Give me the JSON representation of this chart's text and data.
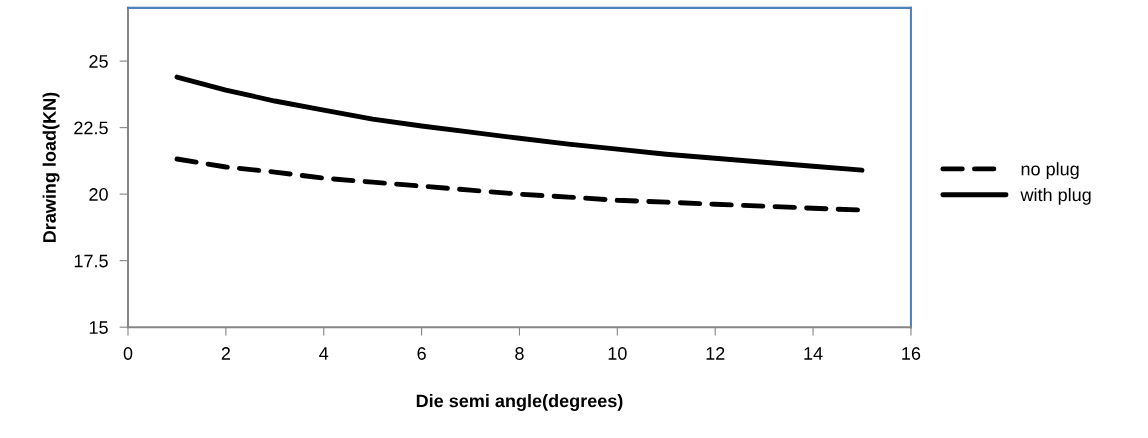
{
  "chart_data": {
    "type": "line",
    "xlabel": "Die semi angle(degrees)",
    "ylabel": "Drawing load(KN)",
    "x": [
      1,
      2,
      3,
      4,
      5,
      6,
      7,
      8,
      9,
      10,
      11,
      12,
      13,
      14,
      15
    ],
    "series": [
      {
        "name": "no plug",
        "color": "#000000",
        "line_style": "dashed",
        "values": [
          21.32,
          21.02,
          20.83,
          20.6,
          20.45,
          20.3,
          20.15,
          20.0,
          19.89,
          19.77,
          19.7,
          19.62,
          19.55,
          19.47,
          19.4
        ]
      },
      {
        "name": "with plug",
        "color": "#000000",
        "line_style": "solid",
        "values": [
          24.4,
          23.91,
          23.5,
          23.16,
          22.82,
          22.56,
          22.33,
          22.1,
          21.88,
          21.69,
          21.5,
          21.35,
          21.2,
          21.05,
          20.9
        ]
      }
    ],
    "xlim": [
      0,
      16
    ],
    "xticks": [
      0,
      2,
      4,
      6,
      8,
      10,
      12,
      14,
      16
    ],
    "ylim": [
      15,
      27
    ],
    "yticks": [
      15,
      {
        "value": 17.5,
        "label": "17.5"
      },
      20,
      {
        "value": 22.5,
        "label": "22.5"
      },
      25
    ],
    "grid": false,
    "legend": "right",
    "marker": "none"
  }
}
